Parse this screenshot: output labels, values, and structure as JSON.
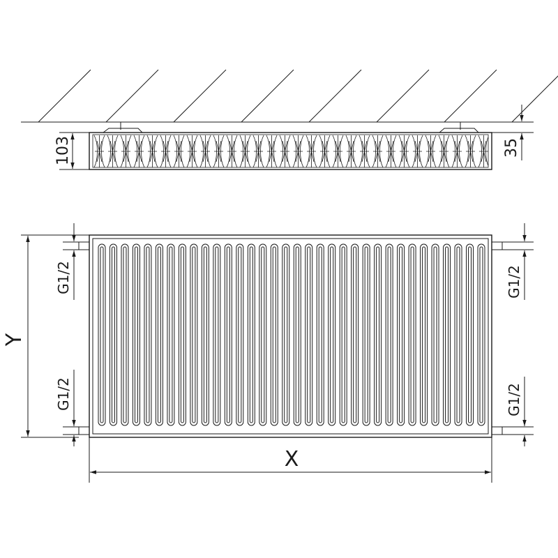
{
  "drawing": {
    "top_view": {
      "height_label": "103",
      "wall_gap_label": "35"
    },
    "front_view": {
      "width_label": "X",
      "height_label": "Y",
      "left_top_connection_label": "G1/2",
      "left_bottom_connection_label": "G1/2",
      "right_top_connection_label": "G1/2",
      "right_bottom_connection_label": "G1/2"
    },
    "line_color": "#1a1a1a"
  }
}
